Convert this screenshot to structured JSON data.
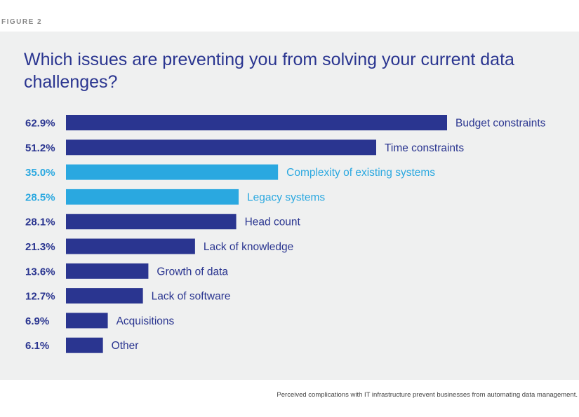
{
  "figure_label": "FIGURE 2",
  "caption": "Perceived complications with IT infrastructure prevent businesses from automating data management.",
  "colors": {
    "dark": "#2a3590",
    "light": "#2aa8e0",
    "panel": "#eff0f0"
  },
  "chart_data": {
    "type": "bar",
    "orientation": "horizontal",
    "title": "Which issues are preventing you from solving your current data challenges?",
    "unit": "%",
    "xlim": [
      0,
      62.9
    ],
    "grid": false,
    "categories": [
      "Budget constraints",
      "Time constraints",
      "Complexity of existing systems",
      "Legacy systems",
      "Head count",
      "Lack of knowledge",
      "Growth of data",
      "Lack of software",
      "Acquisitions",
      "Other"
    ],
    "values": [
      62.9,
      51.2,
      35.0,
      28.5,
      28.1,
      21.3,
      13.6,
      12.7,
      6.9,
      6.1
    ],
    "value_labels": [
      "62.9%",
      "51.2%",
      "35.0%",
      "28.5%",
      "28.1%",
      "21.3%",
      "13.6%",
      "12.7%",
      "6.9%",
      "6.1%"
    ],
    "highlight": [
      false,
      false,
      true,
      true,
      false,
      false,
      false,
      false,
      false,
      false
    ]
  }
}
